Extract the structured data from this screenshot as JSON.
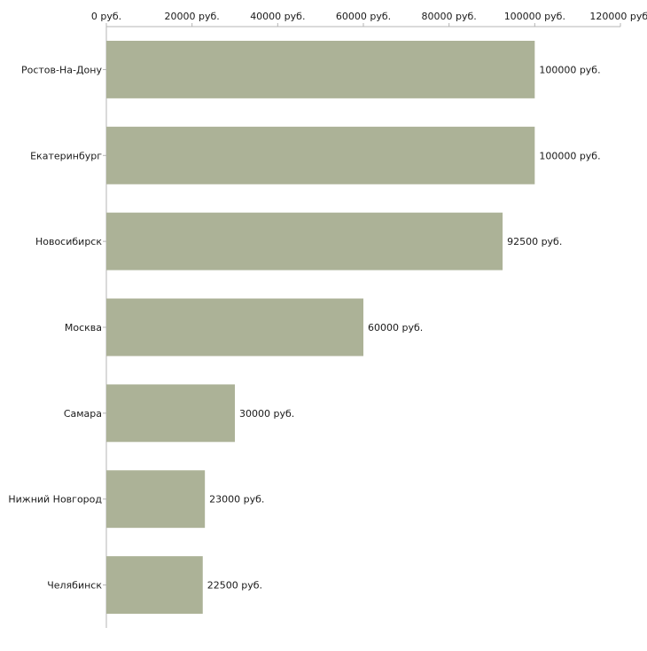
{
  "chart_data": {
    "type": "bar",
    "orientation": "horizontal",
    "title": "",
    "xlabel": "",
    "ylabel": "",
    "xlim": [
      0,
      120000
    ],
    "x_ticks": [
      0,
      20000,
      40000,
      60000,
      80000,
      100000,
      120000
    ],
    "x_tick_labels": [
      "0 руб.",
      "20000 руб.",
      "40000 руб.",
      "60000 руб.",
      "80000 руб.",
      "100000 руб.",
      "120000 руб."
    ],
    "categories": [
      "Ростов-На-Дону",
      "Екатеринбург",
      "Новосибирск",
      "Москва",
      "Самара",
      "Нижний Новгород",
      "Челябинск"
    ],
    "values": [
      100000,
      100000,
      92500,
      60000,
      30000,
      23000,
      22500
    ],
    "value_labels": [
      "100000 руб.",
      "100000 руб.",
      "92500 руб.",
      "60000 руб.",
      "30000 руб.",
      "23000 руб.",
      "22500 руб."
    ],
    "axis_position": "top",
    "grid": false,
    "legend": "none",
    "colors": {
      "bar": "#acb297",
      "axis": "#b4b4b4",
      "text": "#1a1a1a"
    }
  }
}
